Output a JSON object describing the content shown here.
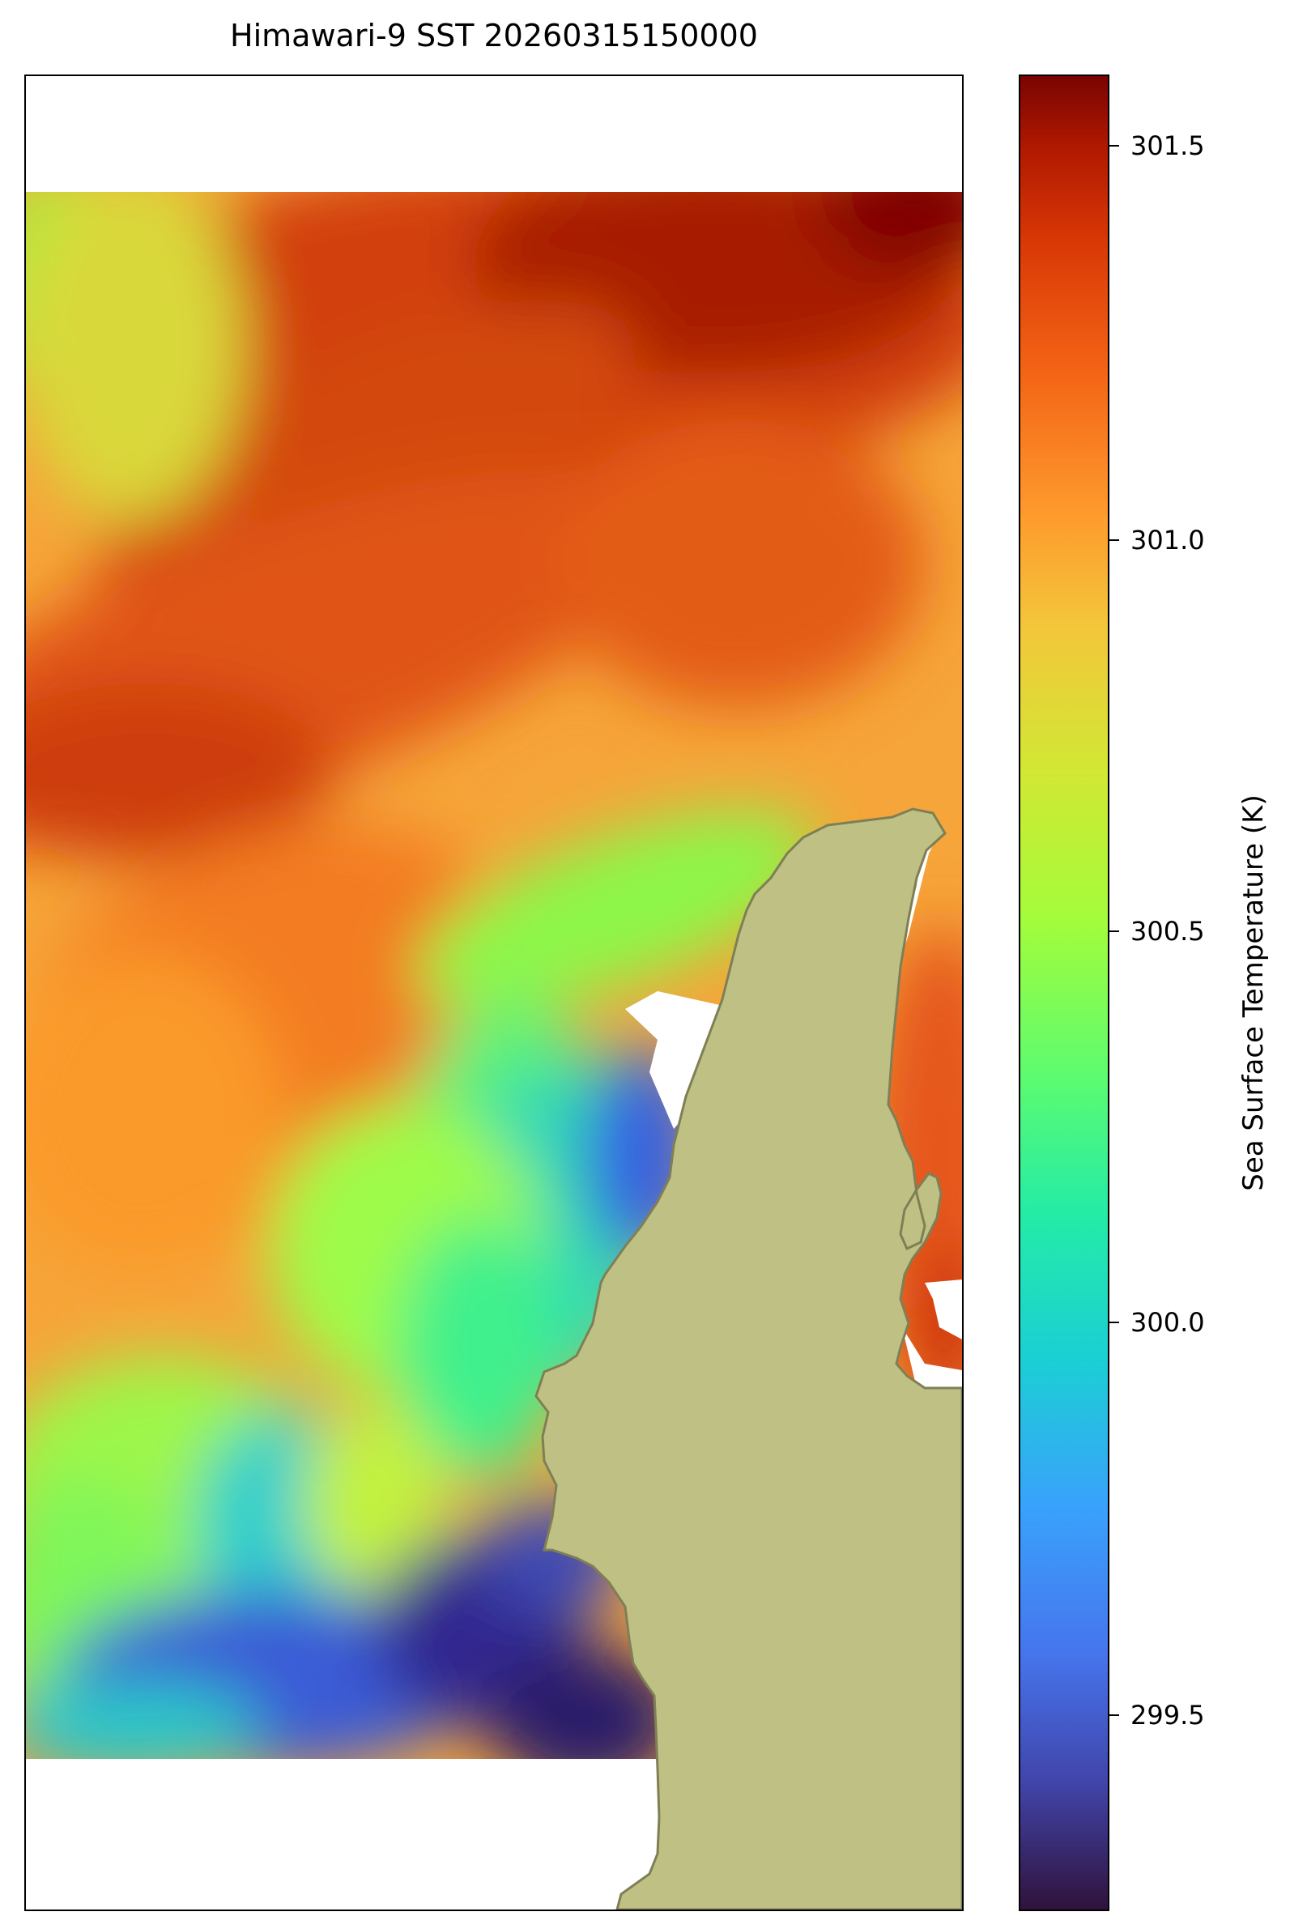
{
  "title": "Himawari-9 SST 20260315150000",
  "colorbar": {
    "label": "Sea Surface Temperature (K)",
    "ticks": [
      "301.5",
      "301.0",
      "300.5",
      "300.0",
      "299.5"
    ],
    "tick_values": [
      301.5,
      301.0,
      300.5,
      300.0,
      299.5
    ],
    "range": [
      299.28,
      301.6
    ],
    "colormap": "turbo"
  },
  "colors": {
    "land": "#bfc084",
    "coastline": "#7f7f56",
    "no_data": "#ffffff"
  }
}
